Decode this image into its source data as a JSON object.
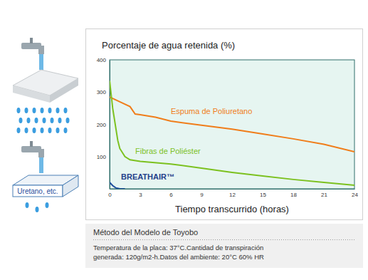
{
  "chart_data": {
    "type": "line",
    "title": "Porcentaje de agua retenida (%)",
    "x_label": "Tiempo transcurrido (horas)",
    "xlim": [
      0,
      24
    ],
    "xticks": [
      0,
      3,
      6,
      9,
      12,
      15,
      18,
      21,
      24
    ],
    "ylim": [
      0,
      400
    ],
    "yticks": [
      100,
      200,
      300,
      400
    ],
    "grid": false,
    "series": [
      {
        "name": "Espuma de Poliuretano",
        "color": "#f07d1a",
        "x": [
          0,
          1,
          2,
          2.5,
          3,
          4.5,
          6,
          9,
          12,
          15,
          18,
          21,
          24
        ],
        "values": [
          285,
          270,
          255,
          232,
          230,
          222,
          210,
          197,
          185,
          170,
          155,
          138,
          115
        ]
      },
      {
        "name": "Fibras de Poliéster",
        "color": "#7cc11f",
        "x": [
          0,
          0.3,
          0.8,
          1,
          1.5,
          2,
          3,
          6,
          9,
          12,
          15,
          18,
          21,
          24
        ],
        "values": [
          335,
          250,
          150,
          125,
          100,
          90,
          85,
          77,
          64,
          51,
          40,
          29,
          20,
          11
        ]
      },
      {
        "name": "BREATHAIR™",
        "color": "#1f4e9c",
        "x": [
          0,
          0.3,
          0.6,
          1,
          1.5
        ],
        "values": [
          20,
          10,
          3,
          0,
          0
        ]
      }
    ]
  },
  "illustration": {
    "label": "Uretano, etc."
  },
  "method": {
    "title": "Método del Modelo de Toyobo",
    "lines": [
      "Temperatura de la placa: 37°C.Cantidad de transpiración",
      "generada: 120g/m2-h.Datos del ambiente: 20°C 60% HR"
    ]
  }
}
